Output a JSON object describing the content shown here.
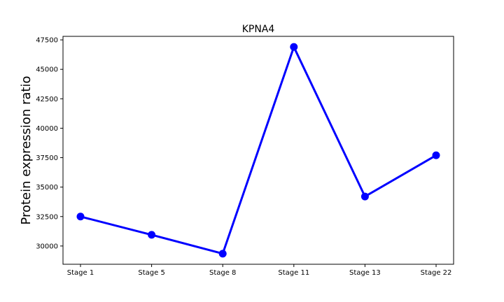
{
  "chart_data": {
    "type": "line",
    "title": "KPNA4",
    "xlabel": "",
    "ylabel": "Protein expression ratio",
    "categories": [
      "Stage 1",
      "Stage 5",
      "Stage 8",
      "Stage 11",
      "Stage 13",
      "Stage 22"
    ],
    "series": [
      {
        "values": [
          32500,
          30950,
          29350,
          46900,
          34200,
          37700
        ]
      }
    ],
    "ylim": [
      28450,
      47800
    ],
    "yticks": [
      30000,
      32500,
      35000,
      37500,
      40000,
      42500,
      45000,
      47500
    ],
    "ytick_labels": [
      "30000",
      "32500",
      "35000",
      "37500",
      "40000",
      "42500",
      "45000",
      "47500"
    ],
    "grid": false,
    "legend": "none",
    "colors": {
      "line": "#0000ff",
      "marker": "#0000ff",
      "axis": "#000000"
    }
  }
}
